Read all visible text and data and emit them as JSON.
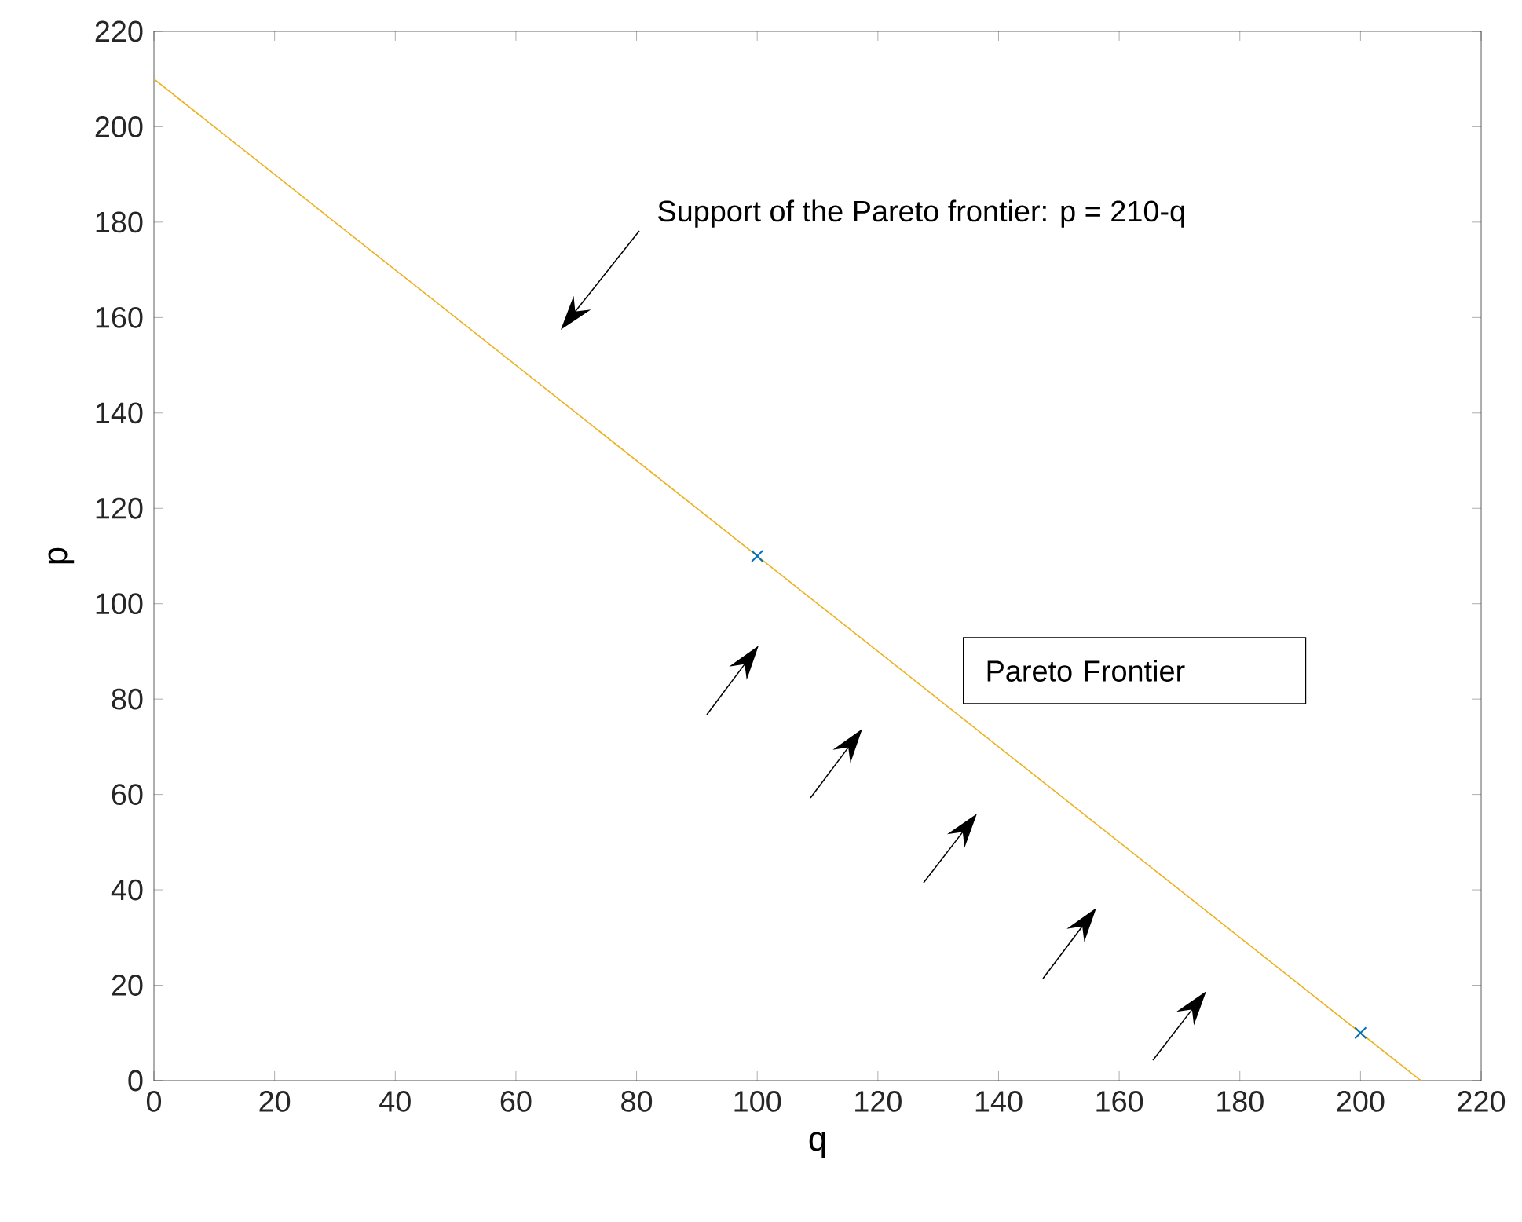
{
  "chart_data": {
    "type": "line",
    "xlabel": "q",
    "ylabel": "p",
    "xlim": [
      0,
      220
    ],
    "ylim": [
      0,
      220
    ],
    "xticks": [
      0,
      20,
      40,
      60,
      80,
      100,
      120,
      140,
      160,
      180,
      200,
      220
    ],
    "yticks": [
      0,
      20,
      40,
      60,
      80,
      100,
      120,
      140,
      160,
      180,
      200,
      220
    ],
    "series": [
      {
        "color": "#edb120",
        "x": [
          0,
          210
        ],
        "values": [
          210,
          0
        ]
      },
      {
        "type": "scatter",
        "color": "#0072bd",
        "marker": "cross",
        "x": [
          100,
          200
        ],
        "values": [
          110,
          10
        ]
      }
    ],
    "annotations": [
      "Support of the Pareto frontier: p = 210-q",
      "Pareto Frontier"
    ]
  }
}
